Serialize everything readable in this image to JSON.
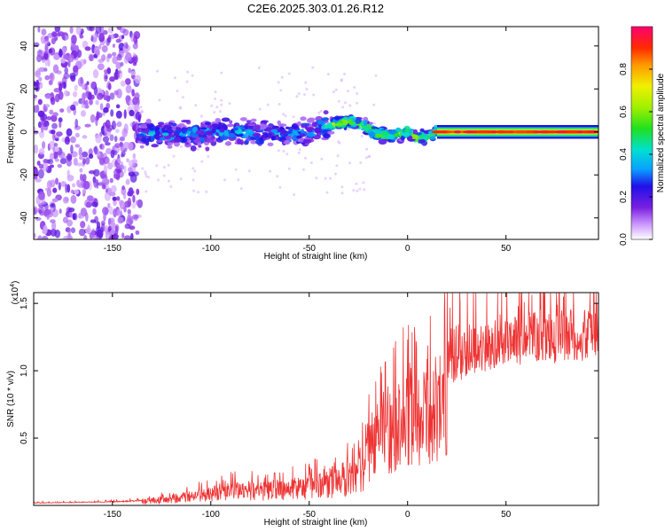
{
  "title": "C2E6.2025.303.01.26.R12",
  "chart_data": [
    {
      "type": "heatmap",
      "name": "spectrogram",
      "xlabel": "Height of straight line (km)",
      "ylabel": "Frequency (Hz)",
      "xlim": [
        -190,
        97
      ],
      "ylim": [
        -50,
        49
      ],
      "xticks": [
        -150,
        -100,
        -50,
        0,
        50
      ],
      "yticks": [
        -40,
        -20,
        0,
        20,
        40
      ],
      "colorbar": {
        "label": "Normalized spectral amplitude",
        "range": [
          0.0,
          1.0
        ],
        "ticks": [
          0.0,
          0.2,
          0.4,
          0.6,
          0.8
        ]
      },
      "regions": [
        {
          "x_range": [
            -190,
            -136
          ],
          "description": "scattered noise across all frequencies",
          "level": 0.12
        },
        {
          "x_range": [
            -136,
            -40
          ],
          "center_hz": 0,
          "spread_hz": 8,
          "level": 0.3
        },
        {
          "x_range": [
            -40,
            15
          ],
          "center_hz": 0,
          "spread_hz": 4,
          "level": 0.55
        },
        {
          "x_range": [
            15,
            97
          ],
          "center_hz": 0,
          "spread_hz": 2,
          "level": 0.9
        }
      ],
      "ridge": [
        {
          "x": -136,
          "f": -1
        },
        {
          "x": -110,
          "f": -1
        },
        {
          "x": -90,
          "f": 0
        },
        {
          "x": -60,
          "f": -1
        },
        {
          "x": -50,
          "f": 0
        },
        {
          "x": -45,
          "f": 2
        },
        {
          "x": -40,
          "f": 3
        },
        {
          "x": -30,
          "f": 5
        },
        {
          "x": -22,
          "f": 3
        },
        {
          "x": -18,
          "f": 0
        },
        {
          "x": -12,
          "f": -2
        },
        {
          "x": -5,
          "f": -1
        },
        {
          "x": 0,
          "f": 0
        },
        {
          "x": 5,
          "f": -3
        },
        {
          "x": 10,
          "f": -2
        },
        {
          "x": 15,
          "f": 0
        },
        {
          "x": 97,
          "f": 0
        }
      ]
    },
    {
      "type": "line",
      "name": "snr",
      "xlabel": "Height of straight line (km)",
      "ylabel": "SNR (10 * v/v)",
      "y_scale_label": "(x10",
      "y_scale_exp": "4",
      "color": "#ee3333",
      "xlim": [
        -190,
        97
      ],
      "ylim": [
        0,
        1.58
      ],
      "xticks": [
        -150,
        -100,
        -50,
        0,
        50
      ],
      "yticks": [
        0.5,
        1.0,
        1.5
      ],
      "ytick_labels": [
        "0.5",
        "1.0",
        "1.5"
      ],
      "envelope": [
        {
          "x": -190,
          "y": 0.02
        },
        {
          "x": -150,
          "y": 0.03
        },
        {
          "x": -135,
          "y": 0.04
        },
        {
          "x": -125,
          "y": 0.07
        },
        {
          "x": -110,
          "y": 0.11
        },
        {
          "x": -100,
          "y": 0.14
        },
        {
          "x": -85,
          "y": 0.19
        },
        {
          "x": -75,
          "y": 0.17
        },
        {
          "x": -60,
          "y": 0.2
        },
        {
          "x": -45,
          "y": 0.25
        },
        {
          "x": -35,
          "y": 0.3
        },
        {
          "x": -28,
          "y": 0.38
        },
        {
          "x": -22,
          "y": 0.55
        },
        {
          "x": -15,
          "y": 0.7
        },
        {
          "x": -8,
          "y": 0.85
        },
        {
          "x": 0,
          "y": 0.95
        },
        {
          "x": 10,
          "y": 1.05
        },
        {
          "x": 18,
          "y": 1.2
        },
        {
          "x": 30,
          "y": 1.3
        },
        {
          "x": 45,
          "y": 1.38
        },
        {
          "x": 60,
          "y": 1.43
        },
        {
          "x": 80,
          "y": 1.45
        },
        {
          "x": 97,
          "y": 1.47
        }
      ]
    }
  ]
}
